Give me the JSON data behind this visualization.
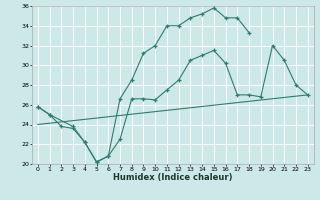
{
  "xlabel": "Humidex (Indice chaleur)",
  "background_color": "#cce8e8",
  "grid_color": "#ffffff",
  "line_color": "#2e7d6e",
  "xlim": [
    -0.5,
    23.5
  ],
  "ylim": [
    20,
    36
  ],
  "xticks": [
    0,
    1,
    2,
    3,
    4,
    5,
    6,
    7,
    8,
    9,
    10,
    11,
    12,
    13,
    14,
    15,
    16,
    17,
    18,
    19,
    20,
    21,
    22,
    23
  ],
  "yticks": [
    20,
    22,
    24,
    26,
    28,
    30,
    32,
    34,
    36
  ],
  "line1_x": [
    0,
    1,
    2,
    3,
    4,
    5,
    6,
    7,
    8,
    9,
    10,
    11,
    12,
    13,
    14,
    15,
    16,
    17,
    18
  ],
  "line1_y": [
    25.8,
    25.0,
    23.8,
    23.6,
    22.2,
    20.2,
    20.8,
    26.6,
    28.5,
    31.2,
    32.0,
    34.0,
    34.0,
    34.8,
    35.2,
    35.8,
    34.8,
    34.8,
    33.3
  ],
  "line2_x": [
    0,
    1,
    3,
    4,
    5,
    6,
    7,
    8,
    9,
    10,
    11,
    12,
    13,
    14,
    15,
    16,
    17,
    18,
    19,
    20,
    21,
    22,
    23
  ],
  "line2_y": [
    25.8,
    25.0,
    23.8,
    22.2,
    20.2,
    20.8,
    22.5,
    26.6,
    26.6,
    26.5,
    27.5,
    28.5,
    30.5,
    31.0,
    31.5,
    30.2,
    27.0,
    27.0,
    26.8,
    32.0,
    30.5,
    28.0,
    27.0
  ],
  "line3_x": [
    0,
    23
  ],
  "line3_y": [
    24.0,
    27.0
  ]
}
